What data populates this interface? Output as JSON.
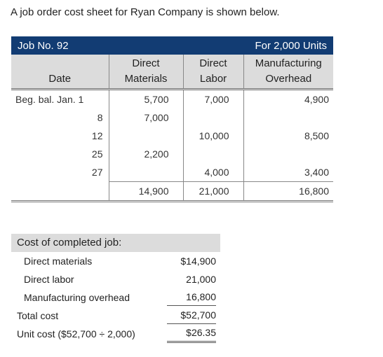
{
  "intro": "A job order cost sheet for Ryan Company is shown below.",
  "sheet": {
    "job_label": "Job No. 92",
    "units_label": "For 2,000 Units",
    "headers": [
      "Date",
      "Direct Materials",
      "Direct Labor",
      "Manufacturing Overhead"
    ],
    "rows": [
      {
        "date": "Beg. bal. Jan. 1",
        "materials": "5,700",
        "labor": "7,000",
        "overhead": "4,900"
      },
      {
        "date": "8",
        "materials": "7,000",
        "labor": "",
        "overhead": ""
      },
      {
        "date": "12",
        "materials": "",
        "labor": "10,000",
        "overhead": "8,500"
      },
      {
        "date": "25",
        "materials": "2,200",
        "labor": "",
        "overhead": ""
      },
      {
        "date": "27",
        "materials": "",
        "labor": "4,000",
        "overhead": "3,400"
      }
    ],
    "totals": {
      "materials": "14,900",
      "labor": "21,000",
      "overhead": "16,800"
    }
  },
  "summary": {
    "heading": "Cost of completed job:",
    "lines": [
      {
        "label": "Direct materials",
        "value": "$14,900"
      },
      {
        "label": "Direct labor",
        "value": "21,000"
      },
      {
        "label": "Manufacturing overhead",
        "value": "16,800"
      },
      {
        "label": "Total cost",
        "value": "$52,700"
      },
      {
        "label": "Unit cost ($52,700 ÷ 2,000)",
        "value": "$26.35"
      }
    ]
  }
}
